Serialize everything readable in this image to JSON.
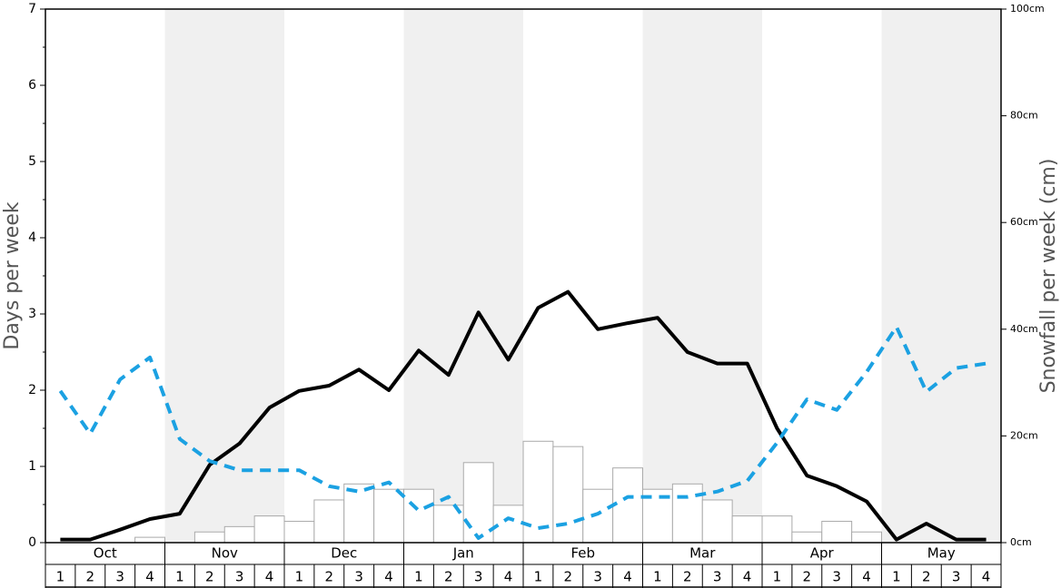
{
  "chart_data": {
    "type": "bar",
    "months": [
      "Oct",
      "Nov",
      "Dec",
      "Jan",
      "Feb",
      "Mar",
      "Apr",
      "May"
    ],
    "weeks": [
      "1",
      "2",
      "3",
      "4"
    ],
    "ylabel": "Days per week",
    "y2label": "Snowfall per week (cm)",
    "ylim": [
      0,
      7
    ],
    "yticks": [
      0,
      1,
      2,
      3,
      4,
      5,
      6,
      7
    ],
    "y2lim": [
      0,
      100
    ],
    "y2ticks": [
      {
        "value": 0,
        "label": "0cm"
      },
      {
        "value": 20,
        "label": "20cm"
      },
      {
        "value": 40,
        "label": "40cm"
      },
      {
        "value": 60,
        "label": "60cm"
      },
      {
        "value": 80,
        "label": "80cm"
      },
      {
        "value": 100,
        "label": "100cm"
      }
    ],
    "series": [
      {
        "type": "bar",
        "axis": "y2",
        "color": "#ffffff",
        "values": [
          0,
          0,
          0,
          1,
          0,
          2,
          3,
          5,
          4,
          8,
          11,
          10,
          10,
          7,
          15,
          7,
          19,
          18,
          10,
          14,
          10,
          11,
          8,
          5,
          5,
          2,
          4,
          2,
          0,
          0,
          0,
          0
        ]
      },
      {
        "type": "line",
        "color": "#000000",
        "values": [
          0.04,
          0.04,
          0.17,
          0.31,
          0.38,
          1.02,
          1.3,
          1.77,
          1.99,
          2.06,
          2.27,
          2.0,
          2.52,
          2.2,
          3.02,
          2.4,
          3.08,
          3.29,
          2.8,
          2.88,
          2.95,
          2.5,
          2.35,
          2.35,
          1.5,
          0.88,
          0.74,
          0.54,
          0.04,
          0.25,
          0.04,
          0.04
        ]
      },
      {
        "type": "line",
        "dashed": true,
        "color": "#1ba1e2",
        "values": [
          1.99,
          1.43,
          2.14,
          2.43,
          1.36,
          1.07,
          0.95,
          0.95,
          0.95,
          0.74,
          0.67,
          0.79,
          0.42,
          0.6,
          0.06,
          0.32,
          0.19,
          0.25,
          0.38,
          0.6,
          0.6,
          0.6,
          0.67,
          0.81,
          1.31,
          1.88,
          1.74,
          2.24,
          2.83,
          1.98,
          2.29,
          2.35
        ]
      }
    ]
  }
}
